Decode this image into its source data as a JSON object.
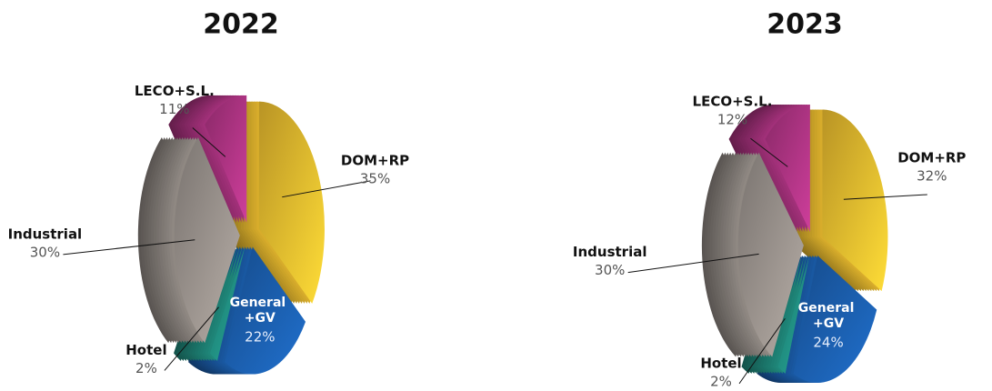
{
  "chart_data": [
    {
      "type": "pie3d",
      "title": "2022",
      "categories": [
        "DOM+RP",
        "General +GV",
        "Hotel",
        "Industrial",
        "LECO+S.L."
      ],
      "values": [
        35,
        22,
        2,
        30,
        11
      ],
      "value_labels": [
        "35%",
        "22%",
        "2%",
        "30%",
        "11%"
      ],
      "colors": [
        "#f6c531",
        "#1d64b8",
        "#23998a",
        "#a39b95",
        "#b8378a"
      ]
    },
    {
      "type": "pie3d",
      "title": "2023",
      "categories": [
        "DOM+RP",
        "General +GV",
        "Hotel",
        "Industrial",
        "LECO+S.L."
      ],
      "values": [
        32,
        24,
        2,
        30,
        12
      ],
      "value_labels": [
        "32%",
        "24%",
        "2%",
        "30%",
        "12%"
      ],
      "colors": [
        "#f6c531",
        "#1d64b8",
        "#23998a",
        "#a39b95",
        "#b8378a"
      ]
    }
  ]
}
